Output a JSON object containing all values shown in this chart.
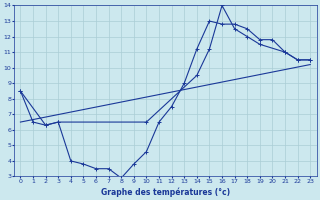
{
  "xlabel": "Graphe des températures (°c)",
  "bg_color": "#cce8ee",
  "grid_color": "#aacdd5",
  "line_color": "#1a3898",
  "xlim": [
    -0.5,
    23.5
  ],
  "ylim": [
    3,
    14
  ],
  "xticks": [
    0,
    1,
    2,
    3,
    4,
    5,
    6,
    7,
    8,
    9,
    10,
    11,
    12,
    13,
    14,
    15,
    16,
    17,
    18,
    19,
    20,
    21,
    22,
    23
  ],
  "yticks": [
    3,
    4,
    5,
    6,
    7,
    8,
    9,
    10,
    11,
    12,
    13,
    14
  ],
  "series1_x": [
    0,
    1,
    2,
    3,
    4,
    5,
    6,
    7,
    8,
    9,
    10,
    11,
    12,
    13,
    14,
    15,
    16,
    17,
    18,
    19,
    20,
    21,
    22,
    23
  ],
  "series1_y": [
    8.5,
    6.5,
    6.3,
    6.5,
    4.0,
    3.8,
    3.5,
    3.5,
    2.9,
    3.8,
    4.6,
    6.5,
    7.5,
    9.0,
    11.2,
    13.0,
    12.8,
    12.8,
    12.5,
    11.8,
    11.8,
    11.0,
    10.5,
    10.5
  ],
  "series2_x": [
    0,
    2,
    3,
    10,
    14,
    15,
    16,
    17,
    18,
    19,
    21,
    22,
    23
  ],
  "series2_y": [
    8.5,
    6.3,
    6.5,
    6.5,
    9.5,
    11.2,
    14.0,
    12.5,
    12.0,
    11.5,
    11.0,
    10.5,
    10.5
  ],
  "series3_x": [
    0,
    23
  ],
  "series3_y": [
    6.5,
    10.2
  ]
}
